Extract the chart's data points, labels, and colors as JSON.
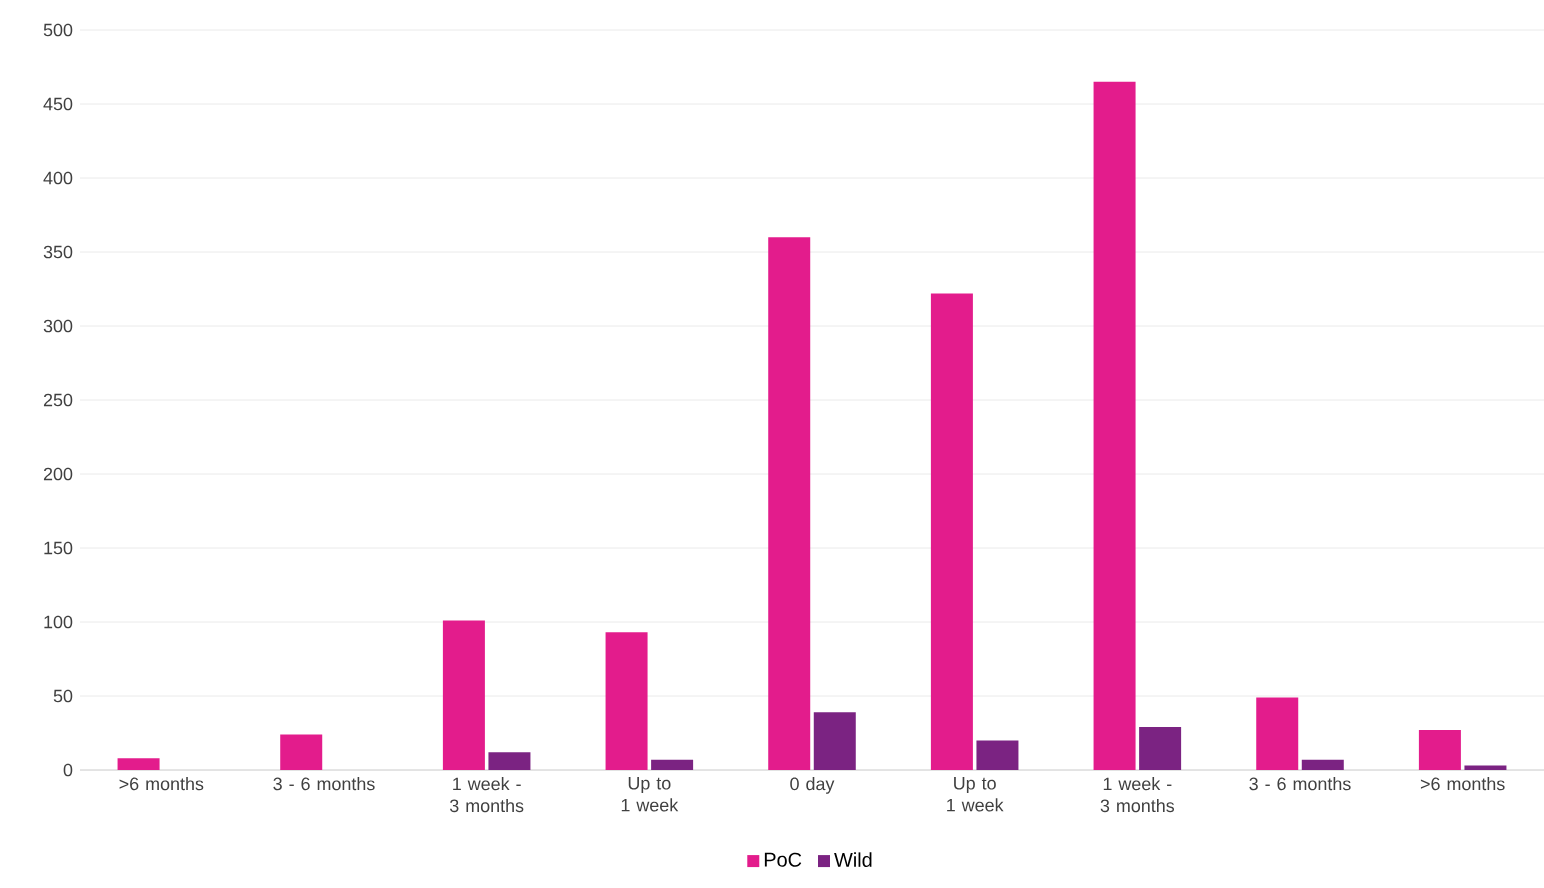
{
  "chart_data": {
    "type": "bar",
    "categories": [
      ">6 months",
      "3 - 6 months",
      "1 week - 3 months",
      "Up to 1 week",
      "0 day",
      "Up to 1 week",
      "1 week - 3 months",
      "3 - 6 months",
      ">6 months"
    ],
    "series": [
      {
        "name": "PoC",
        "color": "#e31c8c",
        "values": [
          8,
          24,
          101,
          93,
          360,
          322,
          465,
          49,
          27
        ]
      },
      {
        "name": "Wild",
        "color": "#7b2382",
        "values": [
          null,
          null,
          12,
          7,
          39,
          20,
          29,
          7,
          3
        ]
      }
    ],
    "ylim": [
      0,
      500
    ],
    "yticks": [
      0,
      50,
      100,
      150,
      200,
      250,
      300,
      350,
      400,
      450,
      500
    ],
    "grid": "y",
    "legend": "bottom"
  }
}
